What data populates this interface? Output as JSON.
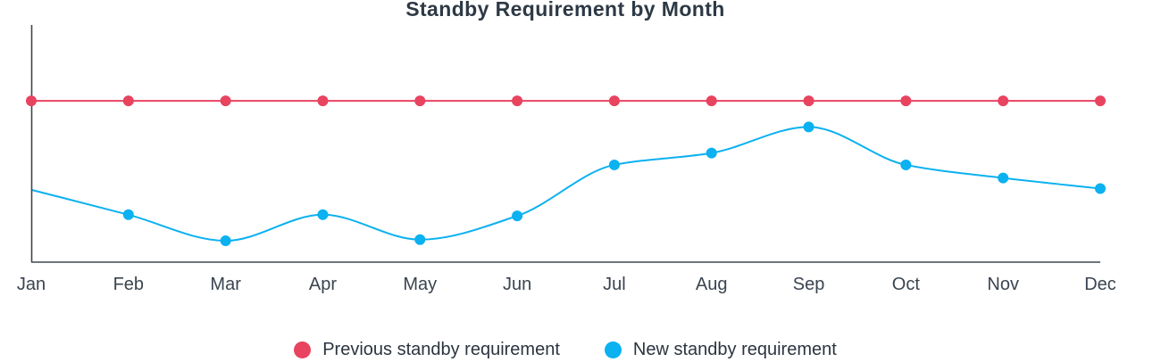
{
  "chart_data": {
    "type": "line",
    "title": "Standby Requirement by Month",
    "xlabel": "",
    "ylabel": "",
    "grid": false,
    "legend_position": "bottom",
    "categories": [
      "Jan",
      "Feb",
      "Mar",
      "Apr",
      "May",
      "Jun",
      "Jul",
      "Aug",
      "Sep",
      "Oct",
      "Nov",
      "Dec"
    ],
    "ylim": [
      0,
      100
    ],
    "series": [
      {
        "name": "Previous standby requirement",
        "color": "#e8435f",
        "smooth": false,
        "values": [
          68,
          68,
          68,
          68,
          68,
          68,
          68,
          68,
          68,
          68,
          68,
          68
        ]
      },
      {
        "name": "New standby requirement",
        "color": "#0bb1f0",
        "smooth": true,
        "values": [
          30.5,
          20,
          9,
          20,
          9.5,
          19.5,
          41,
          46,
          57,
          41,
          35.5,
          31
        ]
      }
    ]
  }
}
